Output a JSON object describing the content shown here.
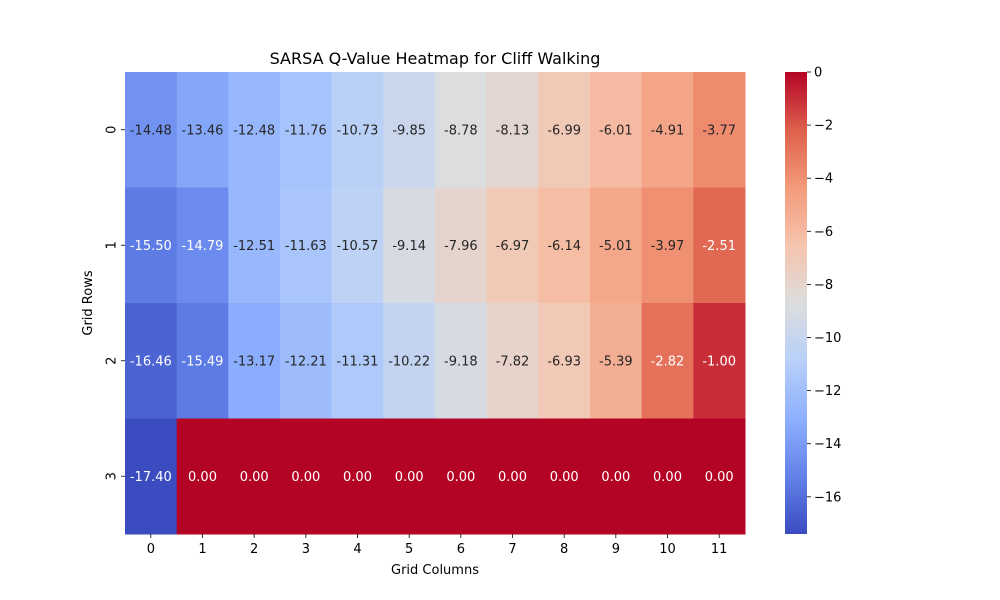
{
  "chart_data": {
    "type": "heatmap",
    "title": "SARSA Q-Value Heatmap for Cliff Walking",
    "xlabel": "Grid Columns",
    "ylabel": "Grid Rows",
    "x_categories": [
      "0",
      "1",
      "2",
      "3",
      "4",
      "5",
      "6",
      "7",
      "8",
      "9",
      "10",
      "11"
    ],
    "y_categories": [
      "0",
      "1",
      "2",
      "3"
    ],
    "values": [
      [
        -14.48,
        -13.46,
        -12.48,
        -11.76,
        -10.73,
        -9.85,
        -8.78,
        -8.13,
        -6.99,
        -6.01,
        -4.91,
        -3.77
      ],
      [
        -15.5,
        -14.79,
        -12.51,
        -11.63,
        -10.57,
        -9.14,
        -7.96,
        -6.97,
        -6.14,
        -5.01,
        -3.97,
        -2.51
      ],
      [
        -16.46,
        -15.49,
        -13.17,
        -12.21,
        -11.31,
        -10.22,
        -9.18,
        -7.82,
        -6.93,
        -5.39,
        -2.82,
        -1.0
      ],
      [
        -17.4,
        0.0,
        0.0,
        0.0,
        0.0,
        0.0,
        0.0,
        0.0,
        0.0,
        0.0,
        0.0,
        0.0
      ]
    ],
    "value_labels_format": "2 decimals",
    "colormap": "coolwarm",
    "colorbar": {
      "range": [
        -17.4,
        0
      ],
      "ticks": [
        0,
        -2,
        -4,
        -6,
        -8,
        -10,
        -12,
        -14,
        -16
      ],
      "tick_labels": [
        "0",
        "−2",
        "−4",
        "−6",
        "−8",
        "−10",
        "−12",
        "−14",
        "−16"
      ]
    },
    "grid": false
  }
}
